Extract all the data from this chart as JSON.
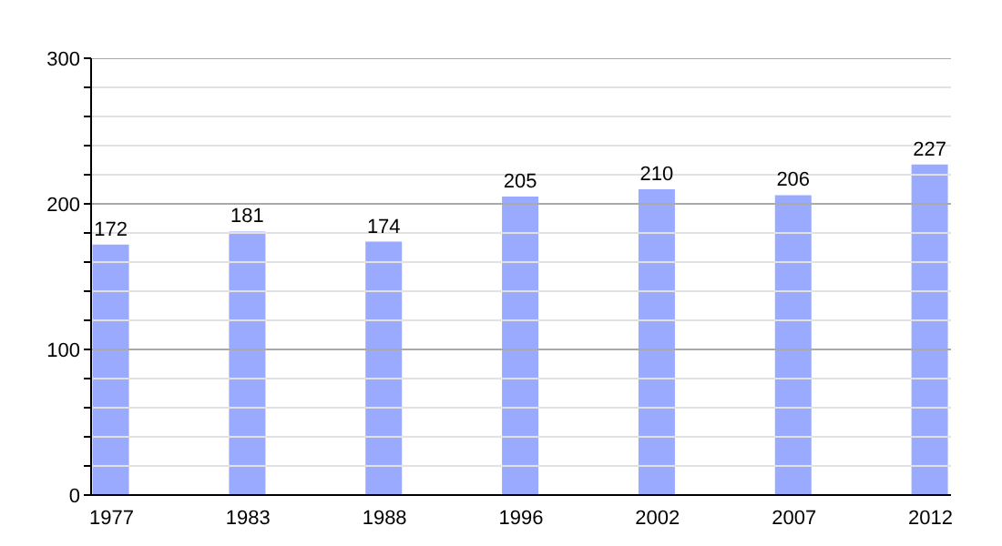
{
  "chart_data": {
    "type": "bar",
    "categories": [
      "1977",
      "1983",
      "1988",
      "1996",
      "2002",
      "2007",
      "2012"
    ],
    "values": [
      172,
      181,
      174,
      205,
      210,
      206,
      227
    ],
    "color": "#99aaff",
    "data_labels": true,
    "grid": "y",
    "ylim": [
      0,
      300
    ],
    "yticks": [
      0,
      {
        "value": 20,
        "label": null
      },
      {
        "value": 40,
        "label": null
      },
      {
        "value": 60,
        "label": null
      },
      {
        "value": 80,
        "label": null
      },
      100,
      {
        "value": 120,
        "label": null
      },
      {
        "value": 140,
        "label": null
      },
      {
        "value": 160,
        "label": null
      },
      {
        "value": 180,
        "label": null
      },
      200,
      {
        "value": 220,
        "label": null
      },
      {
        "value": 240,
        "label": null
      },
      {
        "value": 260,
        "label": null
      },
      {
        "value": 280,
        "label": null
      },
      300
    ]
  }
}
